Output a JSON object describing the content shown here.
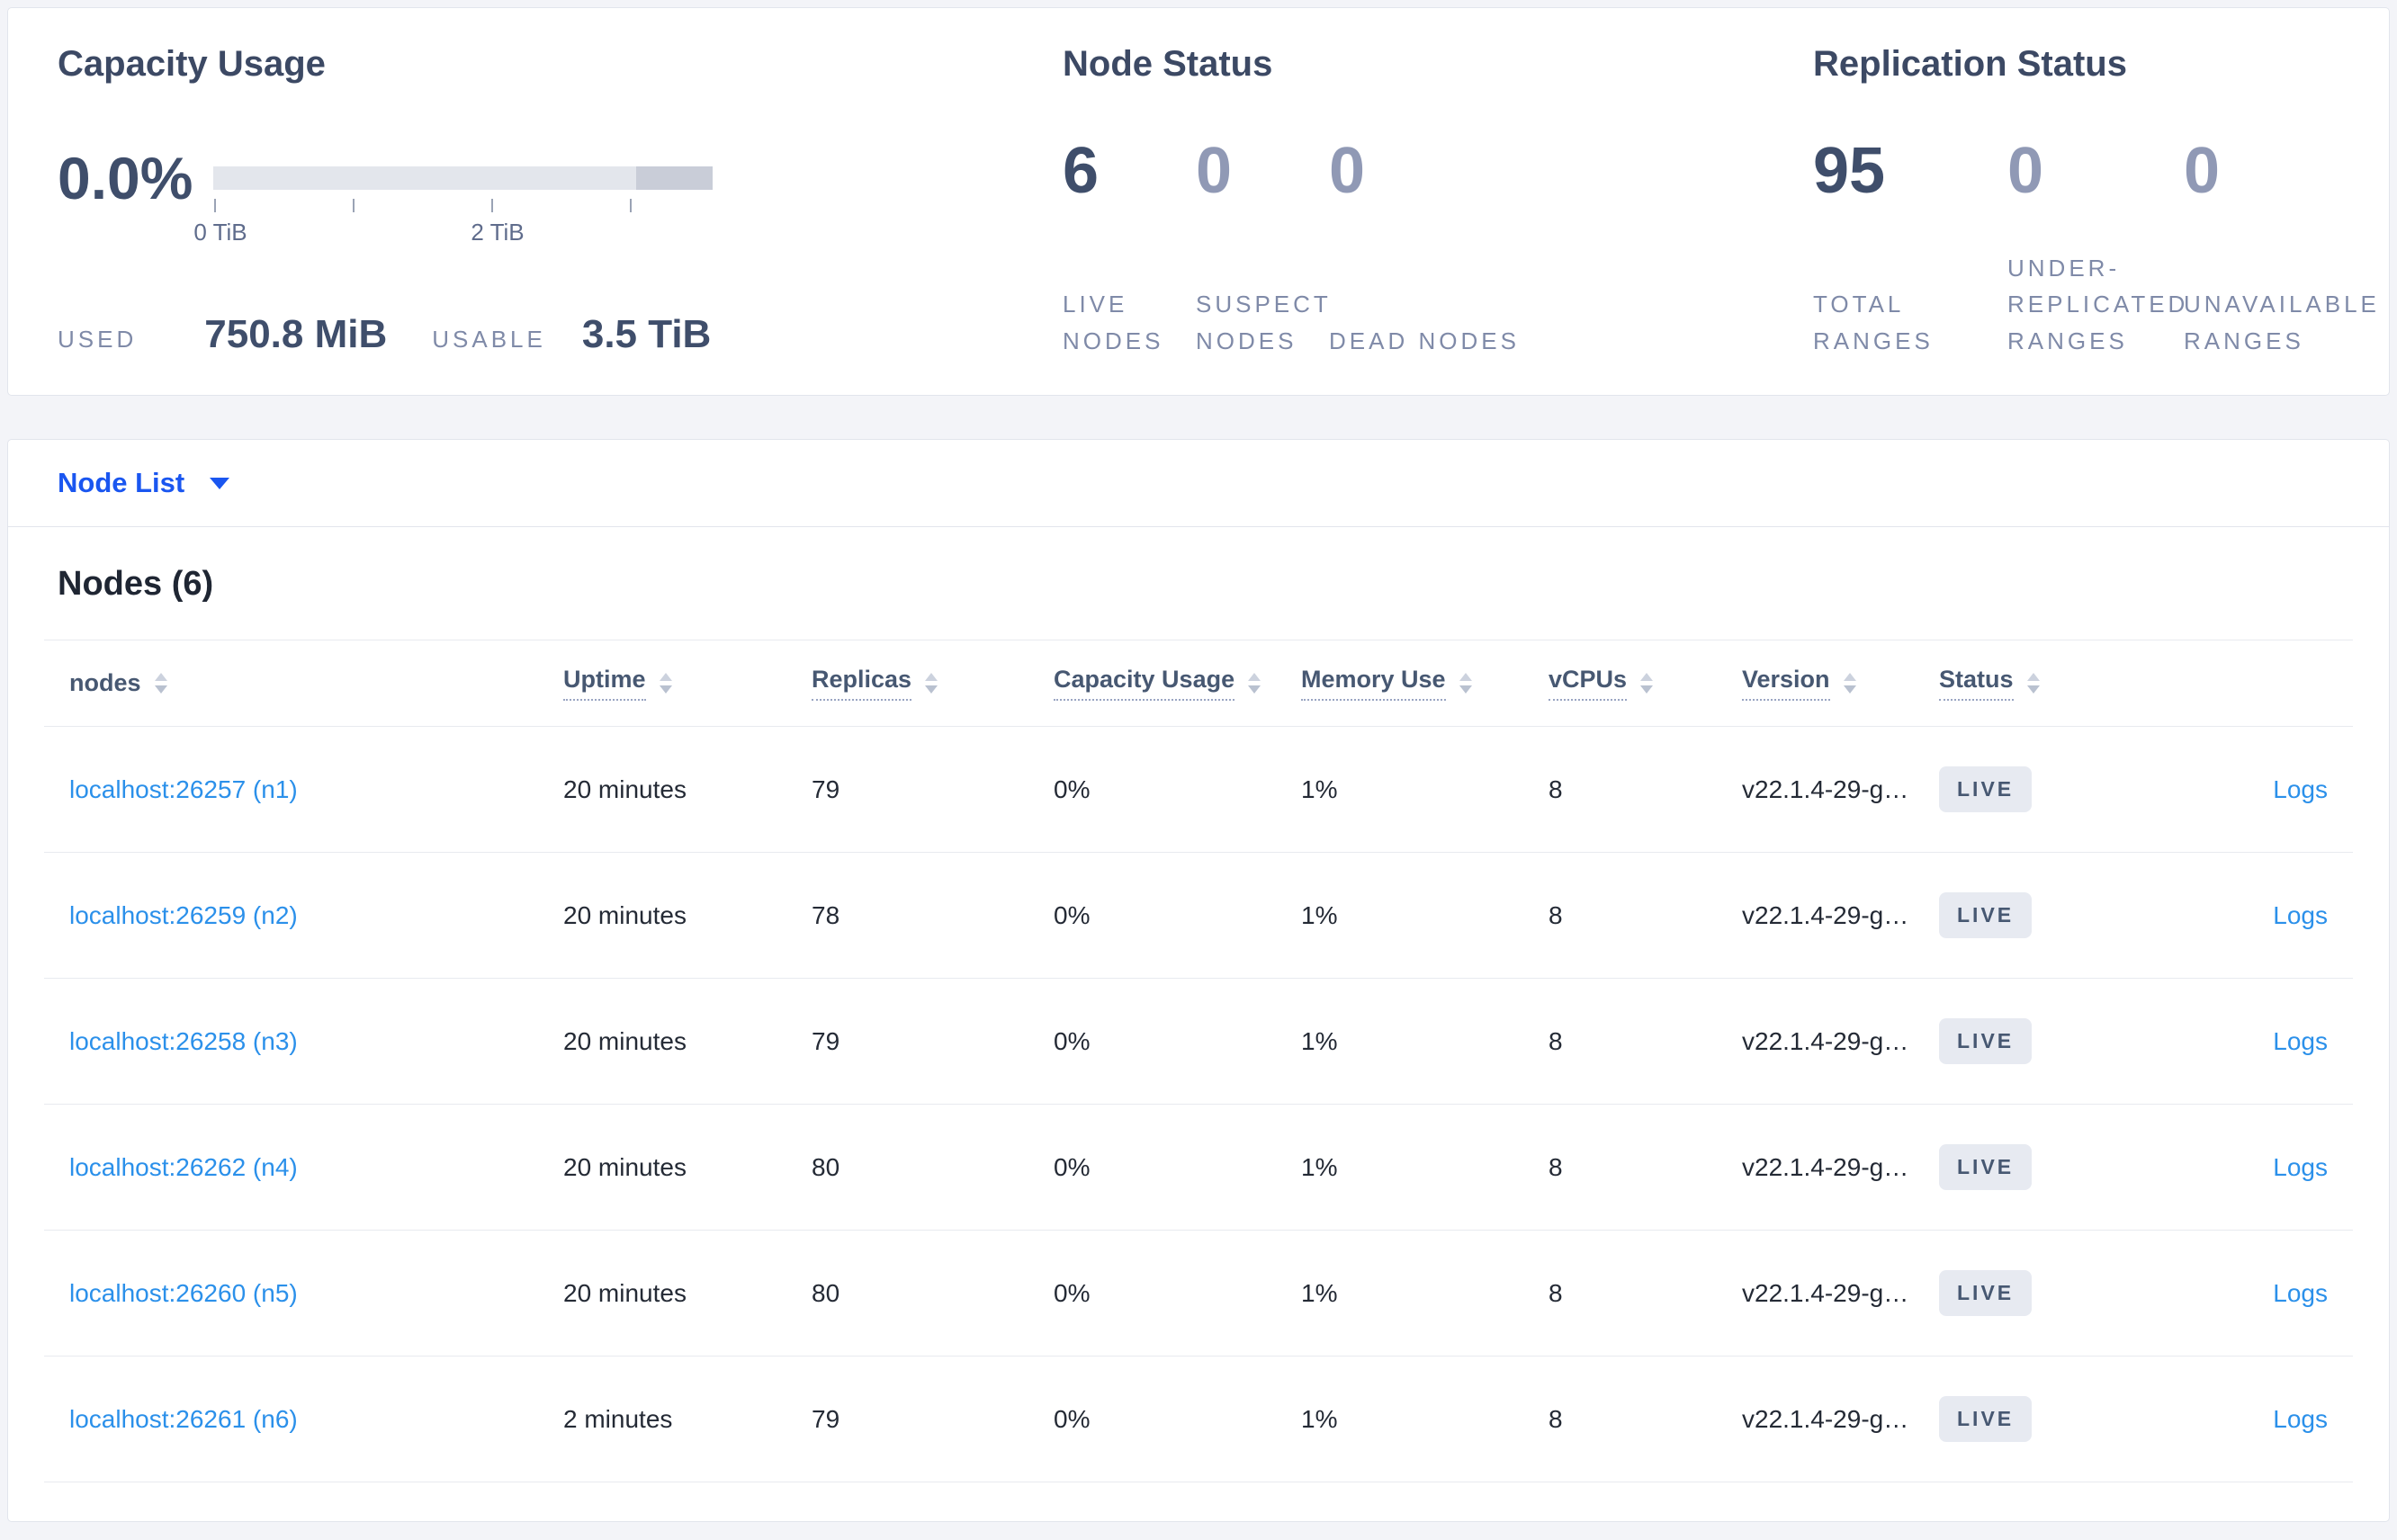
{
  "colors": {
    "page_bg": "#f3f4f8",
    "card_border": "#e2e5ec",
    "title": "#3c4964",
    "number_strong": "#3f4e6b",
    "number_muted": "#9099b5",
    "label_muted": "#7f8aa8",
    "divider": "#e8eaef",
    "link": "#2b90ea",
    "action": "#1a56f0",
    "header_text": "#475872",
    "badge_bg": "#e7eaf1",
    "bar_light": "#e3e6ec",
    "bar_dark": "#c9cdd8"
  },
  "summary": {
    "capacity": {
      "title": "Capacity Usage",
      "percent": "0.0%",
      "axis_ticks": [
        "0 TiB",
        "2 TiB"
      ],
      "used_label": "USED",
      "used_value": "750.8 MiB",
      "usable_label": "USABLE",
      "usable_value": "3.5 TiB"
    },
    "node_status": {
      "title": "Node Status",
      "stats": [
        {
          "value": "6",
          "label": "LIVE NODES"
        },
        {
          "value": "0",
          "label": "SUSPECT NODES"
        },
        {
          "value": "0",
          "label": "DEAD NODES"
        }
      ]
    },
    "replication": {
      "title": "Replication Status",
      "stats": [
        {
          "value": "95",
          "label": "TOTAL RANGES"
        },
        {
          "value": "0",
          "label": "UNDER-REPLICATED RANGES"
        },
        {
          "value": "0",
          "label": "UNAVAILABLE RANGES"
        }
      ]
    }
  },
  "node_list": {
    "dropdown_label": "Node List",
    "heading": "Nodes (6)",
    "logs_label": "Logs",
    "columns": [
      "nodes",
      "Uptime",
      "Replicas",
      "Capacity Usage",
      "Memory Use",
      "vCPUs",
      "Version",
      "Status"
    ],
    "rows": [
      {
        "name": "localhost:26257 (n1)",
        "uptime": "20 minutes",
        "replicas": "79",
        "capacity_usage": "0%",
        "memory_use": "1%",
        "vcpus": "8",
        "version": "v22.1.4-29-g…",
        "status": "LIVE"
      },
      {
        "name": "localhost:26259 (n2)",
        "uptime": "20 minutes",
        "replicas": "78",
        "capacity_usage": "0%",
        "memory_use": "1%",
        "vcpus": "8",
        "version": "v22.1.4-29-g…",
        "status": "LIVE"
      },
      {
        "name": "localhost:26258 (n3)",
        "uptime": "20 minutes",
        "replicas": "79",
        "capacity_usage": "0%",
        "memory_use": "1%",
        "vcpus": "8",
        "version": "v22.1.4-29-g…",
        "status": "LIVE"
      },
      {
        "name": "localhost:26262 (n4)",
        "uptime": "20 minutes",
        "replicas": "80",
        "capacity_usage": "0%",
        "memory_use": "1%",
        "vcpus": "8",
        "version": "v22.1.4-29-g…",
        "status": "LIVE"
      },
      {
        "name": "localhost:26260 (n5)",
        "uptime": "20 minutes",
        "replicas": "80",
        "capacity_usage": "0%",
        "memory_use": "1%",
        "vcpus": "8",
        "version": "v22.1.4-29-g…",
        "status": "LIVE"
      },
      {
        "name": "localhost:26261 (n6)",
        "uptime": "2 minutes",
        "replicas": "79",
        "capacity_usage": "0%",
        "memory_use": "1%",
        "vcpus": "8",
        "version": "v22.1.4-29-g…",
        "status": "LIVE"
      }
    ]
  }
}
